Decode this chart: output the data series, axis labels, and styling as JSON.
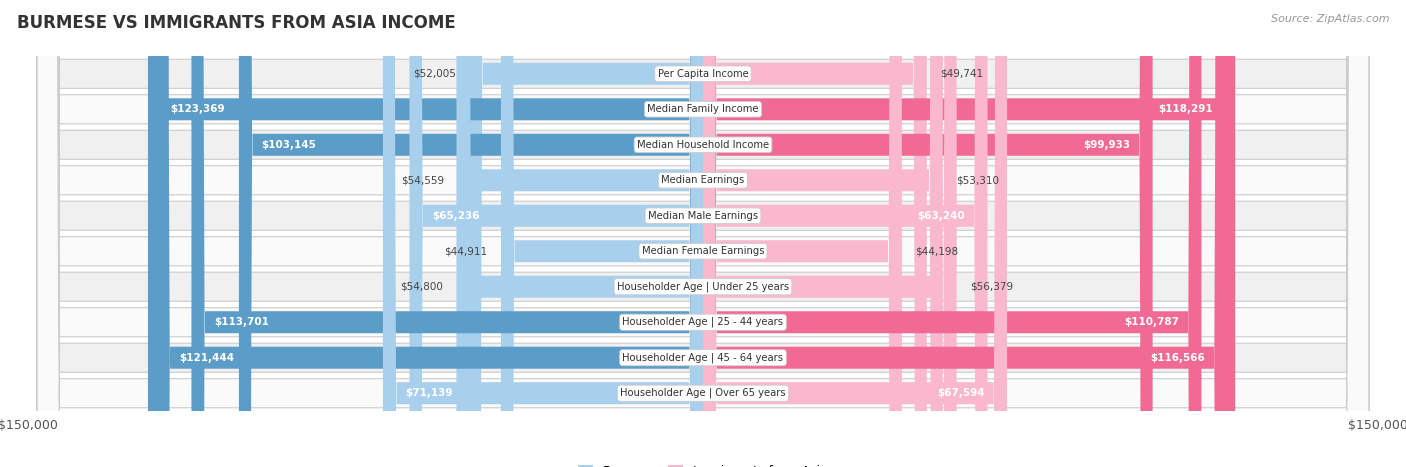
{
  "title": "BURMESE VS IMMIGRANTS FROM ASIA INCOME",
  "source": "Source: ZipAtlas.com",
  "categories": [
    "Per Capita Income",
    "Median Family Income",
    "Median Household Income",
    "Median Earnings",
    "Median Male Earnings",
    "Median Female Earnings",
    "Householder Age | Under 25 years",
    "Householder Age | 25 - 44 years",
    "Householder Age | 45 - 64 years",
    "Householder Age | Over 65 years"
  ],
  "burmese_values": [
    52005,
    123369,
    103145,
    54559,
    65236,
    44911,
    54800,
    113701,
    121444,
    71139
  ],
  "asia_values": [
    49741,
    118291,
    99933,
    53310,
    63240,
    44198,
    56379,
    110787,
    116566,
    67594
  ],
  "burmese_labels": [
    "$52,005",
    "$123,369",
    "$103,145",
    "$54,559",
    "$65,236",
    "$44,911",
    "$54,800",
    "$113,701",
    "$121,444",
    "$71,139"
  ],
  "asia_labels": [
    "$49,741",
    "$118,291",
    "$99,933",
    "$53,310",
    "$63,240",
    "$44,198",
    "$56,379",
    "$110,787",
    "$116,566",
    "$67,594"
  ],
  "max_value": 150000,
  "burmese_color_light": "#A8CFEC",
  "burmese_color_dark": "#5B9DC8",
  "asia_color_light": "#F9B8CE",
  "asia_color_dark": "#F06A94",
  "threshold": 80000,
  "row_bg_odd": "#F0F0F0",
  "row_bg_even": "#FAFAFA",
  "legend_burmese": "Burmese",
  "legend_asia": "Immigrants from Asia"
}
